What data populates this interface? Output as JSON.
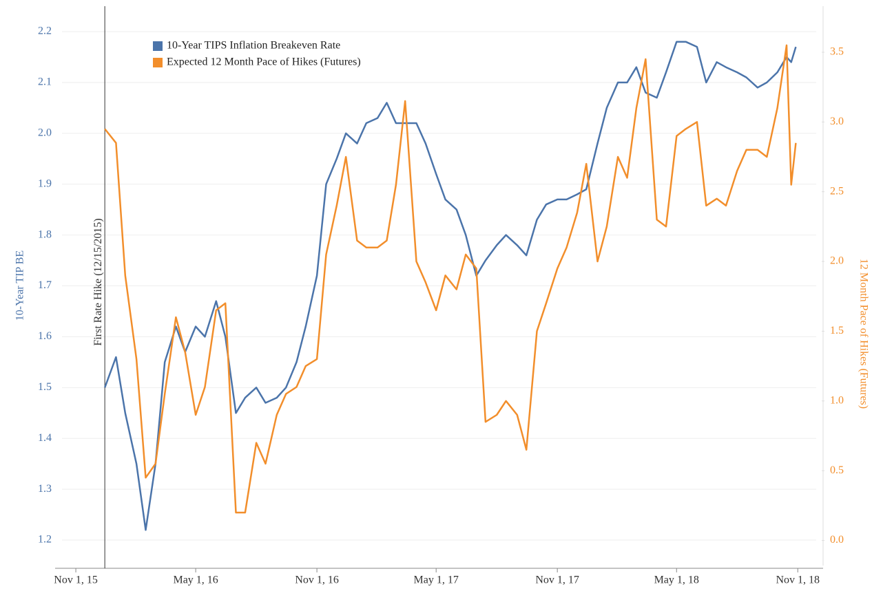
{
  "chart_data": {
    "type": "line",
    "annotation": {
      "text": "First Rate Hike (12/15/2015)",
      "x": "2015-12-15"
    },
    "y_label": "10-Year TIP BE",
    "y2_label": "12 Month Pace of Hikes (Futures)",
    "x": [
      "2015-12-15",
      "2016-01-01",
      "2016-01-15",
      "2016-02-01",
      "2016-02-15",
      "2016-03-01",
      "2016-03-15",
      "2016-04-01",
      "2016-04-15",
      "2016-05-01",
      "2016-05-15",
      "2016-06-01",
      "2016-06-15",
      "2016-07-01",
      "2016-07-15",
      "2016-08-01",
      "2016-08-15",
      "2016-09-01",
      "2016-09-15",
      "2016-10-01",
      "2016-10-15",
      "2016-11-01",
      "2016-11-15",
      "2016-12-01",
      "2016-12-15",
      "2017-01-01",
      "2017-01-15",
      "2017-02-01",
      "2017-02-15",
      "2017-03-01",
      "2017-03-15",
      "2017-04-01",
      "2017-04-15",
      "2017-05-01",
      "2017-05-15",
      "2017-06-01",
      "2017-06-15",
      "2017-07-01",
      "2017-07-15",
      "2017-08-01",
      "2017-08-15",
      "2017-09-01",
      "2017-09-15",
      "2017-10-01",
      "2017-10-15",
      "2017-11-01",
      "2017-11-15",
      "2017-12-01",
      "2017-12-15",
      "2018-01-01",
      "2018-01-15",
      "2018-02-01",
      "2018-02-15",
      "2018-03-01",
      "2018-03-15",
      "2018-04-01",
      "2018-04-15",
      "2018-05-01",
      "2018-05-15",
      "2018-06-01",
      "2018-06-15",
      "2018-07-01",
      "2018-07-15",
      "2018-08-01",
      "2018-08-15",
      "2018-09-01",
      "2018-09-15",
      "2018-10-01",
      "2018-10-15",
      "2018-10-22",
      "2018-10-29"
    ],
    "series": [
      {
        "name": "10-Year TIPS Inflation Breakeven Rate",
        "color": "#4b74aa",
        "axis": "y",
        "values": [
          1.5,
          1.56,
          1.45,
          1.35,
          1.22,
          1.35,
          1.55,
          1.62,
          1.57,
          1.62,
          1.6,
          1.67,
          1.6,
          1.45,
          1.48,
          1.5,
          1.47,
          1.48,
          1.5,
          1.55,
          1.62,
          1.72,
          1.9,
          1.95,
          2.0,
          1.98,
          2.02,
          2.03,
          2.06,
          2.02,
          2.02,
          2.02,
          1.98,
          1.92,
          1.87,
          1.85,
          1.8,
          1.72,
          1.75,
          1.78,
          1.8,
          1.78,
          1.76,
          1.83,
          1.86,
          1.87,
          1.87,
          1.88,
          1.89,
          1.98,
          2.05,
          2.1,
          2.1,
          2.13,
          2.08,
          2.07,
          2.12,
          2.18,
          2.18,
          2.17,
          2.1,
          2.14,
          2.13,
          2.12,
          2.11,
          2.09,
          2.1,
          2.12,
          2.15,
          2.14,
          2.17
        ]
      },
      {
        "name": "Expected 12 Month Pace of Hikes (Futures)",
        "color": "#f28e2b",
        "axis": "y2",
        "values": [
          2.95,
          2.85,
          1.9,
          1.3,
          0.45,
          0.55,
          1.05,
          1.6,
          1.35,
          0.9,
          1.1,
          1.65,
          1.7,
          0.2,
          0.2,
          0.7,
          0.55,
          0.9,
          1.05,
          1.1,
          1.25,
          1.3,
          2.05,
          2.4,
          2.75,
          2.15,
          2.1,
          2.1,
          2.15,
          2.55,
          3.15,
          2.0,
          1.85,
          1.65,
          1.9,
          1.8,
          2.05,
          1.95,
          0.85,
          0.9,
          1.0,
          0.9,
          0.65,
          1.5,
          1.7,
          1.95,
          2.1,
          2.35,
          2.7,
          2.0,
          2.25,
          2.75,
          2.6,
          3.1,
          3.45,
          2.3,
          2.25,
          2.9,
          2.95,
          3.0,
          2.4,
          2.45,
          2.4,
          2.65,
          2.8,
          2.8,
          2.75,
          3.1,
          3.55,
          2.55,
          2.85
        ]
      }
    ],
    "xlim": [
      "2015-10-11",
      "2018-11-29"
    ],
    "xticks": [
      {
        "value": "2015-11-01",
        "label": "Nov 1, 15"
      },
      {
        "value": "2016-05-01",
        "label": "May 1, 16"
      },
      {
        "value": "2016-11-01",
        "label": "Nov 1, 16"
      },
      {
        "value": "2017-05-01",
        "label": "May 1, 17"
      },
      {
        "value": "2017-11-01",
        "label": "Nov 1, 17"
      },
      {
        "value": "2018-05-01",
        "label": "May 1, 18"
      },
      {
        "value": "2018-11-01",
        "label": "Nov 1, 18"
      }
    ],
    "ylim": [
      1.15,
      2.25
    ],
    "yticks": [
      1.2,
      1.3,
      1.4,
      1.5,
      1.6,
      1.7,
      1.8,
      1.9,
      {
        "value": 2,
        "label": "2.0"
      },
      2.1,
      2.2
    ],
    "y2lim": [
      -0.18,
      3.83
    ],
    "y2ticks": [
      {
        "value": 0,
        "label": "0.0"
      },
      0.5,
      {
        "value": 1,
        "label": "1.0"
      },
      1.5,
      {
        "value": 2,
        "label": "2.0"
      },
      2.5,
      {
        "value": 3,
        "label": "3.0"
      },
      3.5
    ],
    "grid": true
  }
}
